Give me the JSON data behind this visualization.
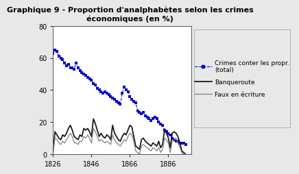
{
  "title": "Graphique 9 - Proportion d'analphabètes selon les crimes\néconomiques (en %)",
  "xlim": [
    1826,
    1898
  ],
  "ylim": [
    0,
    80
  ],
  "yticks": [
    0,
    20,
    40,
    60,
    80
  ],
  "xticks": [
    1826,
    1846,
    1866,
    1886
  ],
  "legend_labels": [
    "Crimes conter les propr.\n(total)",
    "Banqueroute",
    "Faux en écriture"
  ],
  "crimes_total_x": [
    1826,
    1827,
    1828,
    1829,
    1830,
    1831,
    1832,
    1833,
    1834,
    1835,
    1836,
    1837,
    1838,
    1839,
    1840,
    1841,
    1842,
    1843,
    1844,
    1845,
    1846,
    1847,
    1848,
    1849,
    1850,
    1851,
    1852,
    1853,
    1854,
    1855,
    1856,
    1857,
    1858,
    1859,
    1860,
    1861,
    1862,
    1863,
    1864,
    1865,
    1866,
    1867,
    1868,
    1869,
    1870,
    1871,
    1872,
    1873,
    1874,
    1875,
    1876,
    1877,
    1878,
    1879,
    1880,
    1881,
    1882,
    1883,
    1884,
    1885,
    1886,
    1887,
    1888,
    1889,
    1890,
    1891,
    1892,
    1893,
    1894,
    1895
  ],
  "crimes_total_y": [
    63,
    65,
    64,
    61,
    60,
    59,
    57,
    55,
    56,
    54,
    54,
    53,
    57,
    54,
    52,
    51,
    50,
    49,
    48,
    47,
    46,
    44,
    43,
    41,
    40,
    39,
    38,
    39,
    38,
    37,
    36,
    35,
    34,
    33,
    32,
    31,
    38,
    42,
    40,
    39,
    36,
    34,
    33,
    32,
    27,
    26,
    25,
    26,
    24,
    23,
    22,
    21,
    22,
    23,
    22,
    20,
    19,
    18,
    15,
    14,
    13,
    12,
    10,
    9,
    8,
    8,
    7,
    7,
    7,
    6
  ],
  "banqueroute_x": [
    1826,
    1827,
    1828,
    1829,
    1830,
    1831,
    1832,
    1833,
    1834,
    1835,
    1836,
    1837,
    1838,
    1839,
    1840,
    1841,
    1842,
    1843,
    1844,
    1845,
    1846,
    1847,
    1848,
    1849,
    1850,
    1851,
    1852,
    1853,
    1854,
    1855,
    1856,
    1857,
    1858,
    1859,
    1860,
    1861,
    1862,
    1863,
    1864,
    1865,
    1866,
    1867,
    1868,
    1869,
    1870,
    1871,
    1872,
    1873,
    1874,
    1875,
    1876,
    1877,
    1878,
    1879,
    1880,
    1881,
    1882,
    1883,
    1884,
    1885,
    1886,
    1887,
    1888,
    1889,
    1890,
    1891,
    1892,
    1893,
    1894,
    1895
  ],
  "banqueroute_y": [
    2,
    14,
    12,
    10,
    9,
    12,
    11,
    13,
    16,
    18,
    15,
    11,
    10,
    9,
    12,
    11,
    16,
    15,
    16,
    14,
    11,
    22,
    19,
    15,
    11,
    13,
    11,
    10,
    12,
    11,
    9,
    18,
    13,
    11,
    9,
    8,
    11,
    13,
    12,
    15,
    18,
    17,
    11,
    5,
    4,
    3,
    9,
    10,
    8,
    7,
    6,
    5,
    7,
    6,
    5,
    8,
    4,
    6,
    15,
    13,
    10,
    4,
    13,
    14,
    13,
    11,
    7,
    2,
    1,
    0
  ],
  "faux_ecriture_x": [
    1826,
    1827,
    1828,
    1829,
    1830,
    1831,
    1832,
    1833,
    1834,
    1835,
    1836,
    1837,
    1838,
    1839,
    1840,
    1841,
    1842,
    1843,
    1844,
    1845,
    1846,
    1847,
    1848,
    1849,
    1850,
    1851,
    1852,
    1853,
    1854,
    1855,
    1856,
    1857,
    1858,
    1859,
    1860,
    1861,
    1862,
    1863,
    1864,
    1865,
    1866,
    1867,
    1868,
    1869,
    1870,
    1871,
    1872,
    1873,
    1874,
    1875,
    1876,
    1877,
    1878,
    1879,
    1880,
    1881,
    1882,
    1883,
    1884,
    1885,
    1886,
    1887,
    1888,
    1889,
    1890,
    1891,
    1892,
    1893,
    1894,
    1895
  ],
  "faux_ecriture_y": [
    1,
    10,
    9,
    7,
    6,
    8,
    7,
    9,
    11,
    13,
    11,
    7,
    7,
    6,
    8,
    8,
    11,
    10,
    12,
    10,
    7,
    16,
    14,
    11,
    8,
    9,
    8,
    7,
    8,
    7,
    6,
    12,
    9,
    7,
    6,
    5,
    7,
    9,
    8,
    11,
    13,
    12,
    8,
    2,
    1,
    0,
    5,
    6,
    5,
    4,
    3,
    2,
    4,
    3,
    2,
    4,
    1,
    3,
    10,
    9,
    7,
    1,
    8,
    9,
    10,
    7,
    4,
    1,
    0,
    0
  ],
  "color_crimes": "#0000cc",
  "color_banqueroute": "#1a1a1a",
  "color_faux": "#808080",
  "bg_color": "#e8e8e8",
  "plot_bg": "#ffffff",
  "title_fontsize": 8,
  "tick_fontsize": 7,
  "legend_fontsize": 6.5
}
